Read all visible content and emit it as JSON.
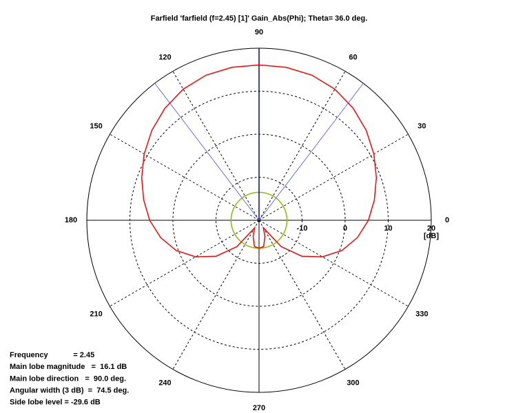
{
  "chart_data": {
    "type": "polar",
    "title": "Farfield 'farfield (f=2.45) [1]' Gain_Abs(Phi); Theta=  36.0 deg.",
    "theta": [
      0,
      10,
      20,
      30,
      40,
      50,
      60,
      70,
      80,
      90,
      100,
      110,
      120,
      130,
      140,
      150,
      160,
      170,
      180,
      190,
      200,
      210,
      220,
      230,
      240,
      250,
      260,
      270,
      280,
      290,
      300,
      310,
      320,
      330,
      340,
      350
    ],
    "series": [
      {
        "color": "#ff0000",
        "values": [
          5.4,
          7.2,
          9,
          10.8,
          12.5,
          14,
          15.2,
          15.9,
          16.1,
          16.1,
          16.1,
          15.9,
          15.2,
          14,
          12.5,
          10.8,
          9,
          7.2,
          5.4,
          3.2,
          0.5,
          -3,
          -7,
          -12,
          -18,
          -16,
          -13.8,
          -13.5,
          -13.8,
          -16,
          -18,
          -12,
          -7,
          -3,
          0.5,
          3.2
        ]
      }
    ],
    "rlim": [
      -20,
      20
    ],
    "rticks": [
      -10,
      0,
      10,
      20
    ],
    "r_label": "[dB]",
    "thetaticks": [
      0,
      30,
      60,
      90,
      120,
      150,
      180,
      210,
      240,
      270,
      300,
      330
    ],
    "beam_directions": [
      {
        "value": 90,
        "color": "#0000c0"
      },
      {
        "value": 52.75,
        "color": "#6a6aff"
      },
      {
        "value": 127.25,
        "color": "#6a6aff"
      }
    ],
    "threshold": {
      "value": -13.5,
      "color": "#80c000"
    },
    "info": [
      "Frequency            = 2.45",
      "Main lobe magnitude   =  16.1 dB",
      "Main lobe direction   =  90.0 deg.",
      "Angular width (3 dB)  =  74.5 deg.",
      "Side lobe level = -29.6 dB"
    ]
  }
}
